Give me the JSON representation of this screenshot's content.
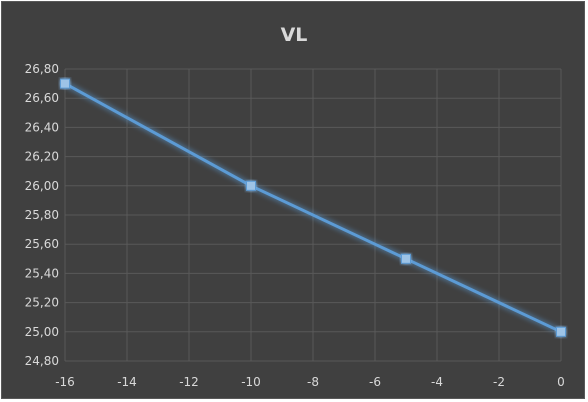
{
  "chart_data": {
    "type": "line",
    "title": "VL",
    "xlabel": "",
    "ylabel": "",
    "xlim": [
      -16,
      0
    ],
    "ylim": [
      24.8,
      26.8
    ],
    "x_ticks": [
      -16,
      -14,
      -12,
      -10,
      -8,
      -6,
      -4,
      -2,
      0
    ],
    "x_tick_labels": [
      "-16",
      "-14",
      "-12",
      "-10",
      "-8",
      "-6",
      "-4",
      "-2",
      "0"
    ],
    "y_ticks": [
      24.8,
      25.0,
      25.2,
      25.4,
      25.6,
      25.8,
      26.0,
      26.2,
      26.4,
      26.6,
      26.8
    ],
    "y_tick_labels": [
      "24,80",
      "25,00",
      "25,20",
      "25,40",
      "25,60",
      "25,80",
      "26,00",
      "26,20",
      "26,40",
      "26,60",
      "26,80"
    ],
    "grid": true,
    "legend": "none",
    "series": [
      {
        "x": [
          -16,
          -10,
          -5,
          0
        ],
        "values": [
          26.7,
          26.0,
          25.5,
          25.0
        ],
        "color": "#5b9bd5",
        "marker": "square"
      }
    ]
  },
  "colors": {
    "background": "#404040",
    "gridline": "#595959",
    "text": "#d9d9d9",
    "marker_fill": "#9dc3e6"
  }
}
